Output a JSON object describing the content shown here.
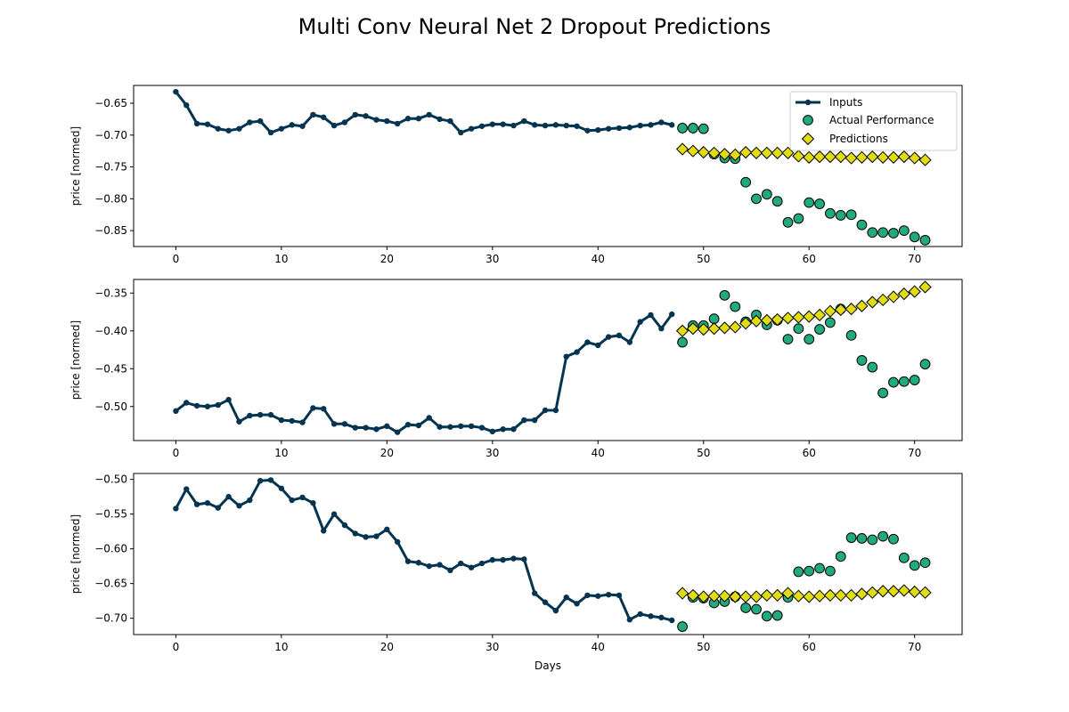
{
  "title": "Multi Conv Neural Net 2 Dropout Predictions",
  "colors": {
    "inputs": "#04344f",
    "actual_fill": "#21ab7c",
    "actual_edge": "#000000",
    "pred_fill": "#e2dc12",
    "pred_edge": "#000000"
  },
  "chart_data": [
    {
      "type": "line",
      "xlabel": "",
      "ylabel": "price [normed]",
      "xlim": [
        -4,
        74.5
      ],
      "ylim": [
        -0.875,
        -0.622
      ],
      "xticks": [
        0,
        10,
        20,
        30,
        40,
        50,
        60,
        70
      ],
      "yticks": [
        -0.85,
        -0.8,
        -0.75,
        -0.7,
        -0.65
      ],
      "ytick_labels": [
        "−0.85",
        "−0.80",
        "−0.75",
        "−0.70",
        "−0.65"
      ],
      "legend": "top-right",
      "series": [
        {
          "name": "Inputs",
          "kind": "line",
          "x": [
            0,
            1,
            2,
            3,
            4,
            5,
            6,
            7,
            8,
            9,
            10,
            11,
            12,
            13,
            14,
            15,
            16,
            17,
            18,
            19,
            20,
            21,
            22,
            23,
            24,
            25,
            26,
            27,
            28,
            29,
            30,
            31,
            32,
            33,
            34,
            35,
            36,
            37,
            38,
            39,
            40,
            41,
            42,
            43,
            44,
            45,
            46,
            47
          ],
          "y": [
            -0.632,
            -0.653,
            -0.682,
            -0.683,
            -0.69,
            -0.693,
            -0.69,
            -0.68,
            -0.678,
            -0.696,
            -0.69,
            -0.684,
            -0.686,
            -0.668,
            -0.672,
            -0.685,
            -0.68,
            -0.668,
            -0.67,
            -0.676,
            -0.678,
            -0.682,
            -0.674,
            -0.674,
            -0.668,
            -0.675,
            -0.678,
            -0.696,
            -0.69,
            -0.686,
            -0.683,
            -0.683,
            -0.685,
            -0.678,
            -0.684,
            -0.685,
            -0.684,
            -0.685,
            -0.686,
            -0.693,
            -0.692,
            -0.69,
            -0.689,
            -0.688,
            -0.685,
            -0.684,
            -0.68,
            -0.684
          ]
        },
        {
          "name": "Actual Performance",
          "kind": "scatter",
          "x": [
            48,
            49,
            50,
            51,
            52,
            53,
            54,
            55,
            56,
            57,
            58,
            59,
            60,
            61,
            62,
            63,
            64,
            65,
            66,
            67,
            68,
            69,
            70,
            71
          ],
          "y": [
            -0.689,
            -0.689,
            -0.69,
            -0.73,
            -0.736,
            -0.737,
            -0.774,
            -0.8,
            -0.793,
            -0.804,
            -0.837,
            -0.831,
            -0.806,
            -0.808,
            -0.823,
            -0.826,
            -0.825,
            -0.841,
            -0.853,
            -0.853,
            -0.854,
            -0.85,
            -0.86,
            -0.865
          ]
        },
        {
          "name": "Predictions",
          "kind": "scatter",
          "x": [
            48,
            49,
            50,
            51,
            52,
            53,
            54,
            55,
            56,
            57,
            58,
            59,
            60,
            61,
            62,
            63,
            64,
            65,
            66,
            67,
            68,
            69,
            70,
            71
          ],
          "y": [
            -0.722,
            -0.725,
            -0.727,
            -0.728,
            -0.73,
            -0.731,
            -0.727,
            -0.728,
            -0.728,
            -0.728,
            -0.728,
            -0.733,
            -0.735,
            -0.734,
            -0.734,
            -0.734,
            -0.736,
            -0.735,
            -0.734,
            -0.735,
            -0.735,
            -0.734,
            -0.736,
            -0.739
          ]
        }
      ]
    },
    {
      "type": "line",
      "xlabel": "",
      "ylabel": "price [normed]",
      "xlim": [
        -4,
        74.5
      ],
      "ylim": [
        -0.545,
        -0.332
      ],
      "xticks": [
        0,
        10,
        20,
        30,
        40,
        50,
        60,
        70
      ],
      "yticks": [
        -0.5,
        -0.45,
        -0.4,
        -0.35
      ],
      "ytick_labels": [
        "−0.50",
        "−0.45",
        "−0.40",
        "−0.35"
      ],
      "series": [
        {
          "name": "Inputs",
          "kind": "line",
          "x": [
            0,
            1,
            2,
            3,
            4,
            5,
            6,
            7,
            8,
            9,
            10,
            11,
            12,
            13,
            14,
            15,
            16,
            17,
            18,
            19,
            20,
            21,
            22,
            23,
            24,
            25,
            26,
            27,
            28,
            29,
            30,
            31,
            32,
            33,
            34,
            35,
            36,
            37,
            38,
            39,
            40,
            41,
            42,
            43,
            44,
            45,
            46,
            47
          ],
          "y": [
            -0.506,
            -0.495,
            -0.499,
            -0.5,
            -0.498,
            -0.491,
            -0.52,
            -0.512,
            -0.511,
            -0.511,
            -0.518,
            -0.519,
            -0.521,
            -0.502,
            -0.503,
            -0.523,
            -0.523,
            -0.528,
            -0.528,
            -0.53,
            -0.526,
            -0.534,
            -0.524,
            -0.525,
            -0.515,
            -0.527,
            -0.527,
            -0.526,
            -0.526,
            -0.528,
            -0.533,
            -0.53,
            -0.53,
            -0.518,
            -0.518,
            -0.505,
            -0.505,
            -0.434,
            -0.428,
            -0.415,
            -0.419,
            -0.408,
            -0.406,
            -0.415,
            -0.388,
            -0.379,
            -0.397,
            -0.378
          ]
        },
        {
          "name": "Actual Performance",
          "kind": "scatter",
          "x": [
            48,
            49,
            50,
            51,
            52,
            53,
            54,
            55,
            56,
            57,
            58,
            59,
            60,
            61,
            62,
            63,
            64,
            65,
            66,
            67,
            68,
            69,
            70,
            71
          ],
          "y": [
            -0.415,
            -0.393,
            -0.393,
            -0.384,
            -0.353,
            -0.368,
            -0.388,
            -0.379,
            -0.392,
            -0.386,
            -0.411,
            -0.397,
            -0.411,
            -0.398,
            -0.389,
            -0.371,
            -0.406,
            -0.439,
            -0.448,
            -0.482,
            -0.468,
            -0.467,
            -0.465,
            -0.444
          ]
        },
        {
          "name": "Predictions",
          "kind": "scatter",
          "x": [
            48,
            49,
            50,
            51,
            52,
            53,
            54,
            55,
            56,
            57,
            58,
            59,
            60,
            61,
            62,
            63,
            64,
            65,
            66,
            67,
            68,
            69,
            70,
            71
          ],
          "y": [
            -0.4,
            -0.397,
            -0.398,
            -0.397,
            -0.396,
            -0.395,
            -0.39,
            -0.387,
            -0.386,
            -0.385,
            -0.383,
            -0.382,
            -0.381,
            -0.379,
            -0.374,
            -0.372,
            -0.371,
            -0.367,
            -0.362,
            -0.359,
            -0.355,
            -0.351,
            -0.348,
            -0.342
          ]
        }
      ]
    },
    {
      "type": "line",
      "xlabel": "Days",
      "ylabel": "price [normed]",
      "xlim": [
        -4,
        74.5
      ],
      "ylim": [
        -0.7235,
        -0.4915
      ],
      "xticks": [
        0,
        10,
        20,
        30,
        40,
        50,
        60,
        70
      ],
      "yticks": [
        -0.7,
        -0.65,
        -0.6,
        -0.55,
        -0.5
      ],
      "ytick_labels": [
        "−0.70",
        "−0.65",
        "−0.60",
        "−0.55",
        "−0.50"
      ],
      "series": [
        {
          "name": "Inputs",
          "kind": "line",
          "x": [
            0,
            1,
            2,
            3,
            4,
            5,
            6,
            7,
            8,
            9,
            10,
            11,
            12,
            13,
            14,
            15,
            16,
            17,
            18,
            19,
            20,
            21,
            22,
            23,
            24,
            25,
            26,
            27,
            28,
            29,
            30,
            31,
            32,
            33,
            34,
            35,
            36,
            37,
            38,
            39,
            40,
            41,
            42,
            43,
            44,
            45,
            46,
            47
          ],
          "y": [
            -0.542,
            -0.514,
            -0.536,
            -0.534,
            -0.541,
            -0.525,
            -0.538,
            -0.53,
            -0.502,
            -0.501,
            -0.513,
            -0.53,
            -0.526,
            -0.534,
            -0.574,
            -0.55,
            -0.566,
            -0.578,
            -0.583,
            -0.582,
            -0.572,
            -0.59,
            -0.618,
            -0.62,
            -0.625,
            -0.623,
            -0.631,
            -0.621,
            -0.627,
            -0.621,
            -0.616,
            -0.616,
            -0.614,
            -0.615,
            -0.664,
            -0.677,
            -0.689,
            -0.67,
            -0.679,
            -0.667,
            -0.668,
            -0.666,
            -0.667,
            -0.702,
            -0.694,
            -0.697,
            -0.699,
            -0.703
          ]
        },
        {
          "name": "Actual Performance",
          "kind": "scatter",
          "x": [
            48,
            49,
            50,
            51,
            52,
            53,
            54,
            55,
            56,
            57,
            58,
            59,
            60,
            61,
            62,
            63,
            64,
            65,
            66,
            67,
            68,
            69,
            70,
            71
          ],
          "y": [
            -0.712,
            -0.67,
            -0.671,
            -0.678,
            -0.676,
            -0.669,
            -0.685,
            -0.687,
            -0.697,
            -0.696,
            -0.67,
            -0.633,
            -0.632,
            -0.628,
            -0.632,
            -0.611,
            -0.584,
            -0.585,
            -0.587,
            -0.582,
            -0.586,
            -0.613,
            -0.624,
            -0.62
          ]
        },
        {
          "name": "Predictions",
          "kind": "scatter",
          "x": [
            48,
            49,
            50,
            51,
            52,
            53,
            54,
            55,
            56,
            57,
            58,
            59,
            60,
            61,
            62,
            63,
            64,
            65,
            66,
            67,
            68,
            69,
            70,
            71
          ],
          "y": [
            -0.664,
            -0.667,
            -0.669,
            -0.668,
            -0.668,
            -0.669,
            -0.669,
            -0.669,
            -0.667,
            -0.667,
            -0.664,
            -0.668,
            -0.669,
            -0.668,
            -0.667,
            -0.667,
            -0.667,
            -0.665,
            -0.663,
            -0.661,
            -0.661,
            -0.66,
            -0.662,
            -0.663
          ]
        }
      ]
    }
  ]
}
